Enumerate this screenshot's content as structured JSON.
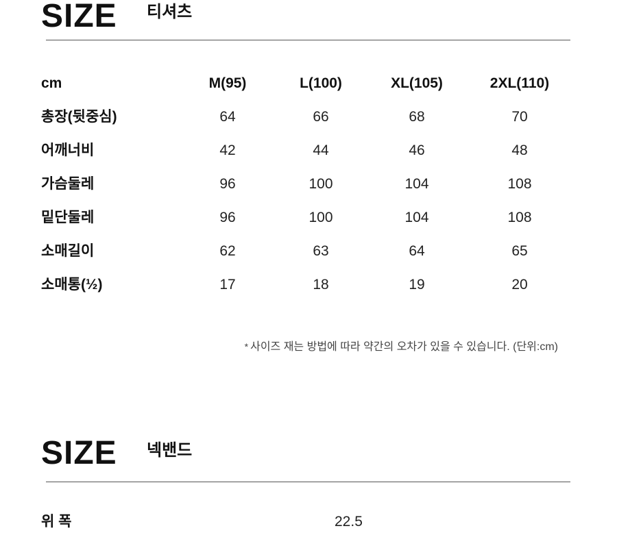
{
  "tshirt_section": {
    "title": "SIZE",
    "subtitle": "티셔츠",
    "header": {
      "unit": "cm",
      "sizes": [
        "M(95)",
        "L(100)",
        "XL(105)",
        "2XL(110)"
      ]
    },
    "rows": [
      {
        "label": "총장(뒷중심)",
        "values": [
          "64",
          "66",
          "68",
          "70"
        ]
      },
      {
        "label": "어깨너비",
        "values": [
          "42",
          "44",
          "46",
          "48"
        ]
      },
      {
        "label": "가슴둘레",
        "values": [
          "96",
          "100",
          "104",
          "108"
        ]
      },
      {
        "label": "밑단둘레",
        "values": [
          "96",
          "100",
          "104",
          "108"
        ]
      },
      {
        "label": "소매길이",
        "values": [
          "62",
          "63",
          "64",
          "65"
        ]
      },
      {
        "label": "소매통(½)",
        "values": [
          "17",
          "18",
          "19",
          "20"
        ]
      }
    ],
    "note_star": "*",
    "note": "사이즈 재는 방법에 따라 약간의 오차가 있을 수 있습니다. (단위:cm)"
  },
  "neckband_section": {
    "title": "SIZE",
    "subtitle": "넥밴드",
    "row": {
      "label": "위 폭",
      "value": "22.5"
    }
  }
}
